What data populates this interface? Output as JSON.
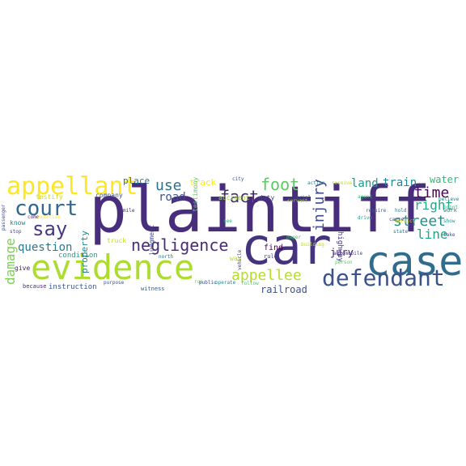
{
  "word_cloud": {
    "words": [
      {
        "text": "plaintiff",
        "color": "#472d7b"
      },
      {
        "text": "car",
        "color": "#46337e"
      },
      {
        "text": "case",
        "color": "#2f6c8e"
      },
      {
        "text": "evidence",
        "color": "#addc30"
      },
      {
        "text": "defendant",
        "color": "#3b528b"
      },
      {
        "text": "appellant",
        "color": "#fde725"
      },
      {
        "text": "court",
        "color": "#31688e"
      },
      {
        "text": "say",
        "color": "#443a83"
      },
      {
        "text": "negligence",
        "color": "#472c7a"
      },
      {
        "text": "appellee",
        "color": "#b5de2b"
      },
      {
        "text": "foot",
        "color": "#5ec962"
      },
      {
        "text": "fact",
        "color": "#482576"
      },
      {
        "text": "street",
        "color": "#21918c"
      },
      {
        "text": "injury",
        "color": "#3e4989"
      },
      {
        "text": "time",
        "color": "#450559"
      },
      {
        "text": "damage",
        "color": "#7ad151"
      },
      {
        "text": "question",
        "color": "#2a788e"
      },
      {
        "text": "line",
        "color": "#20a386"
      },
      {
        "text": "right",
        "color": "#22a884"
      },
      {
        "text": "use",
        "color": "#2c728e"
      },
      {
        "text": "road",
        "color": "#3b528b"
      },
      {
        "text": "land",
        "color": "#1f9a8a"
      },
      {
        "text": "train",
        "color": "#25848e"
      },
      {
        "text": "water",
        "color": "#35b779"
      },
      {
        "text": "place",
        "color": "#2a788e"
      },
      {
        "text": "jury",
        "color": "#481a6c"
      },
      {
        "text": "property",
        "color": "#24868e"
      },
      {
        "text": "track",
        "color": "#fde725"
      },
      {
        "text": "railroad",
        "color": "#3b528b"
      },
      {
        "text": "highway",
        "color": "#443a83"
      },
      {
        "text": "accident",
        "color": "#9fda3a"
      },
      {
        "text": "duty",
        "color": "#414487"
      },
      {
        "text": "find",
        "color": "#440154"
      },
      {
        "text": "rule",
        "color": "#443a83"
      },
      {
        "text": "condition",
        "color": "#1f9e89"
      },
      {
        "text": "instruction",
        "color": "#38588c"
      },
      {
        "text": "testimony",
        "color": "#5ec962"
      },
      {
        "text": "judgment",
        "color": "#3e4989"
      },
      {
        "text": "way",
        "color": "#b5de2b"
      },
      {
        "text": "truck",
        "color": "#bddf26"
      },
      {
        "text": "testify",
        "color": "#cae11f"
      },
      {
        "text": "know",
        "color": "#26828e"
      },
      {
        "text": "give",
        "color": "#482173"
      },
      {
        "text": "company",
        "color": "#3b528b"
      },
      {
        "text": "work",
        "color": "#25858e"
      },
      {
        "text": "building",
        "color": "#bddf26"
      },
      {
        "text": "witness",
        "color": "#375a8c"
      },
      {
        "text": "purpose",
        "color": "#3b528b"
      },
      {
        "text": "vehicle",
        "color": "#443a83"
      },
      {
        "text": "servant",
        "color": "#90d743"
      },
      {
        "text": "trial",
        "color": "#39558c"
      },
      {
        "text": "paper",
        "color": "#4ac16d"
      },
      {
        "text": "automobile",
        "color": "#433d84"
      },
      {
        "text": "person",
        "color": "#5ec962"
      },
      {
        "text": "cause",
        "color": "#46327e"
      },
      {
        "text": "verdict",
        "color": "#d2e21b"
      },
      {
        "text": "state",
        "color": "#2c718e"
      },
      {
        "text": "require",
        "color": "#365c8d"
      },
      {
        "text": "follow",
        "color": "#52c569"
      },
      {
        "text": "passenger",
        "color": "#3e4989"
      },
      {
        "text": "stop",
        "color": "#404688"
      },
      {
        "text": "come",
        "color": "#481f70"
      },
      {
        "text": "because",
        "color": "#482878"
      },
      {
        "text": "run",
        "color": "#73d056"
      },
      {
        "text": "public",
        "color": "#3e4a89"
      },
      {
        "text": "operate",
        "color": "#25848e"
      },
      {
        "text": "take",
        "color": "#3a548c"
      },
      {
        "text": "city",
        "color": "#3b528b"
      },
      {
        "text": "see",
        "color": "#29af7f"
      },
      {
        "text": "north",
        "color": "#2e6e8e"
      },
      {
        "text": "drive",
        "color": "#20928c"
      },
      {
        "text": "exercise",
        "color": "#fde725"
      },
      {
        "text": "mile",
        "color": "#482576"
      },
      {
        "text": "show",
        "color": "#1e9b8a"
      },
      {
        "text": "hold",
        "color": "#297a8e"
      },
      {
        "text": "point",
        "color": "#2db27d"
      },
      {
        "text": "receive",
        "color": "#b8de29"
      },
      {
        "text": "action",
        "color": "#26828e"
      },
      {
        "text": "agent",
        "color": "#35b779"
      },
      {
        "text": "believe",
        "color": "#277f8e"
      }
    ]
  }
}
